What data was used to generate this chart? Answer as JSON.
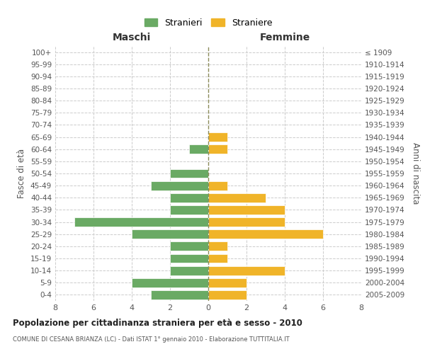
{
  "age_groups": [
    "0-4",
    "5-9",
    "10-14",
    "15-19",
    "20-24",
    "25-29",
    "30-34",
    "35-39",
    "40-44",
    "45-49",
    "50-54",
    "55-59",
    "60-64",
    "65-69",
    "70-74",
    "75-79",
    "80-84",
    "85-89",
    "90-94",
    "95-99",
    "100+"
  ],
  "birth_years": [
    "2005-2009",
    "2000-2004",
    "1995-1999",
    "1990-1994",
    "1985-1989",
    "1980-1984",
    "1975-1979",
    "1970-1974",
    "1965-1969",
    "1960-1964",
    "1955-1959",
    "1950-1954",
    "1945-1949",
    "1940-1944",
    "1935-1939",
    "1930-1934",
    "1925-1929",
    "1920-1924",
    "1915-1919",
    "1910-1914",
    "≤ 1909"
  ],
  "maschi": [
    3,
    4,
    2,
    2,
    2,
    4,
    7,
    2,
    2,
    3,
    2,
    0,
    1,
    0,
    0,
    0,
    0,
    0,
    0,
    0,
    0
  ],
  "femmine": [
    2,
    2,
    4,
    1,
    1,
    6,
    4,
    4,
    3,
    1,
    0,
    0,
    1,
    1,
    0,
    0,
    0,
    0,
    0,
    0,
    0
  ],
  "male_color": "#6aaa64",
  "female_color": "#f0b429",
  "center_line_color": "#8b8b5a",
  "grid_color": "#cccccc",
  "bg_color": "#ffffff",
  "title": "Popolazione per cittadinanza straniera per età e sesso - 2010",
  "subtitle": "COMUNE DI CESANA BRIANZA (LC) - Dati ISTAT 1° gennaio 2010 - Elaborazione TUTTITALIA.IT",
  "xlabel_left": "Maschi",
  "xlabel_right": "Femmine",
  "ylabel_left": "Fasce di età",
  "ylabel_right": "Anni di nascita",
  "legend_stranieri": "Stranieri",
  "legend_straniere": "Straniere",
  "xlim": 8
}
